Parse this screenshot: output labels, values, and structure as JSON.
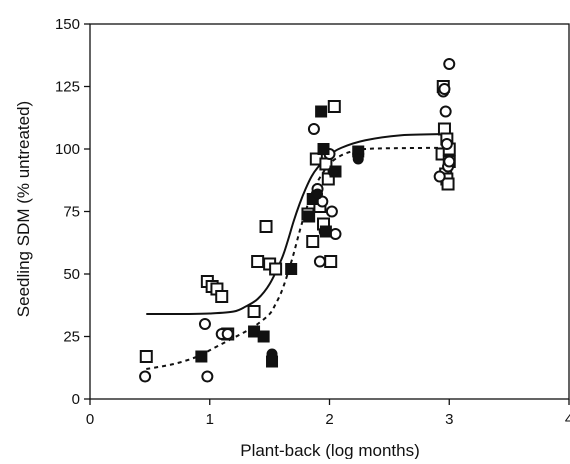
{
  "chart_data": {
    "type": "scatter",
    "title": "",
    "xlabel": "Plant-back (log months)",
    "ylabel": "Seedling SDM (% untreated)",
    "xlim": [
      0,
      4
    ],
    "ylim": [
      0,
      150
    ],
    "xticks": [
      "0",
      "1",
      "2",
      "3",
      "4"
    ],
    "yticks": [
      "0",
      "25",
      "50",
      "75",
      "100",
      "125",
      "150"
    ],
    "grid": false,
    "legend": "none",
    "series": [
      {
        "marker": "open-square",
        "color": "#111111",
        "points": [
          [
            0.47,
            17
          ],
          [
            0.98,
            47
          ],
          [
            1.02,
            45
          ],
          [
            1.06,
            44
          ],
          [
            1.1,
            41
          ],
          [
            1.15,
            26
          ],
          [
            1.37,
            35
          ],
          [
            1.4,
            55
          ],
          [
            1.47,
            69
          ],
          [
            1.5,
            54
          ],
          [
            1.55,
            52
          ],
          [
            1.82,
            74
          ],
          [
            1.86,
            63
          ],
          [
            1.89,
            96
          ],
          [
            1.92,
            77
          ],
          [
            1.95,
            70
          ],
          [
            1.97,
            94
          ],
          [
            1.99,
            88
          ],
          [
            2.01,
            55
          ],
          [
            2.04,
            117
          ],
          [
            2.94,
            98
          ],
          [
            2.95,
            125
          ],
          [
            2.96,
            108
          ],
          [
            2.97,
            90
          ],
          [
            2.98,
            104
          ],
          [
            2.98,
            88
          ],
          [
            2.99,
            86
          ],
          [
            3.0,
            100
          ],
          [
            3.0,
            95
          ]
        ]
      },
      {
        "marker": "open-circle",
        "color": "#111111",
        "points": [
          [
            0.46,
            9
          ],
          [
            0.96,
            30
          ],
          [
            0.98,
            9
          ],
          [
            1.1,
            26
          ],
          [
            1.15,
            26
          ],
          [
            1.87,
            108
          ],
          [
            1.9,
            84
          ],
          [
            1.92,
            55
          ],
          [
            1.94,
            79
          ],
          [
            1.96,
            67
          ],
          [
            2.0,
            98
          ],
          [
            2.02,
            75
          ],
          [
            2.05,
            66
          ],
          [
            2.24,
            98
          ],
          [
            2.92,
            89
          ],
          [
            2.95,
            123
          ],
          [
            2.96,
            124
          ],
          [
            2.97,
            115
          ],
          [
            2.98,
            102
          ],
          [
            2.99,
            93
          ],
          [
            3.0,
            95
          ],
          [
            3.0,
            134
          ]
        ]
      },
      {
        "marker": "filled-square",
        "color": "#111111",
        "points": [
          [
            0.93,
            17
          ],
          [
            1.37,
            27
          ],
          [
            1.45,
            25
          ],
          [
            1.52,
            15
          ],
          [
            1.68,
            52
          ],
          [
            1.83,
            73
          ],
          [
            1.86,
            80
          ],
          [
            1.93,
            115
          ],
          [
            1.95,
            100
          ],
          [
            1.97,
            67
          ],
          [
            2.05,
            91
          ],
          [
            2.24,
            99
          ]
        ]
      },
      {
        "marker": "filled-circle",
        "color": "#111111",
        "points": [
          [
            1.52,
            18
          ],
          [
            1.52,
            16
          ],
          [
            1.9,
            82
          ],
          [
            2.03,
            91
          ],
          [
            2.24,
            96
          ]
        ]
      }
    ],
    "fits": [
      {
        "style": "solid",
        "color": "#111111",
        "x": [
          0.47,
          0.8,
          1.0,
          1.2,
          1.3,
          1.4,
          1.5,
          1.6,
          1.65,
          1.7,
          1.75,
          1.8,
          1.85,
          1.9,
          2.0,
          2.1,
          2.3,
          2.6,
          3.0
        ],
        "y": [
          34,
          34,
          34.2,
          35,
          37,
          40,
          46,
          56,
          63,
          71,
          78,
          84,
          89,
          92.5,
          97.5,
          100.5,
          103.5,
          105.5,
          106
        ]
      },
      {
        "style": "dashed",
        "color": "#111111",
        "x": [
          0.47,
          0.7,
          0.9,
          1.0,
          1.1,
          1.2,
          1.3,
          1.4,
          1.5,
          1.55,
          1.6,
          1.65,
          1.7,
          1.75,
          1.8,
          1.85,
          1.9,
          2.0,
          2.1,
          2.2,
          2.3,
          2.5,
          3.0
        ],
        "y": [
          12,
          14,
          17,
          19.5,
          22,
          24.5,
          27,
          30,
          34,
          38,
          43,
          50,
          58,
          67,
          75,
          82,
          87,
          94,
          97.5,
          99.2,
          100,
          100.3,
          100.5
        ]
      }
    ]
  }
}
